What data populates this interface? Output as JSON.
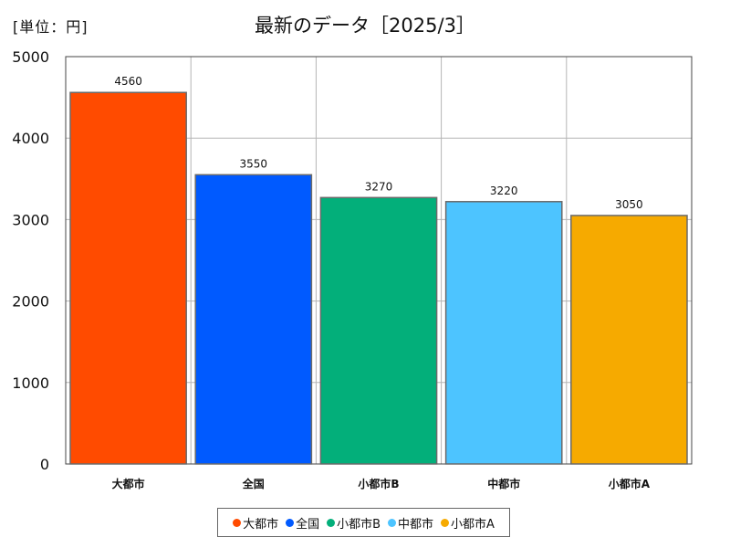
{
  "unit_label": "[単位：円]",
  "title": "最新のデータ［2025/3］",
  "chart_data": {
    "type": "bar",
    "categories": [
      "大都市",
      "全国",
      "小都市B",
      "中都市",
      "小都市A"
    ],
    "values": [
      4560,
      3550,
      3270,
      3220,
      3050
    ],
    "colors": [
      "#ff4b00",
      "#005aff",
      "#03af7a",
      "#4dc4ff",
      "#f6aa00"
    ],
    "ylim": [
      0,
      5000
    ],
    "yticks": [
      0,
      1000,
      2000,
      3000,
      4000,
      5000
    ],
    "grid": true,
    "legend_position": "bottom"
  }
}
